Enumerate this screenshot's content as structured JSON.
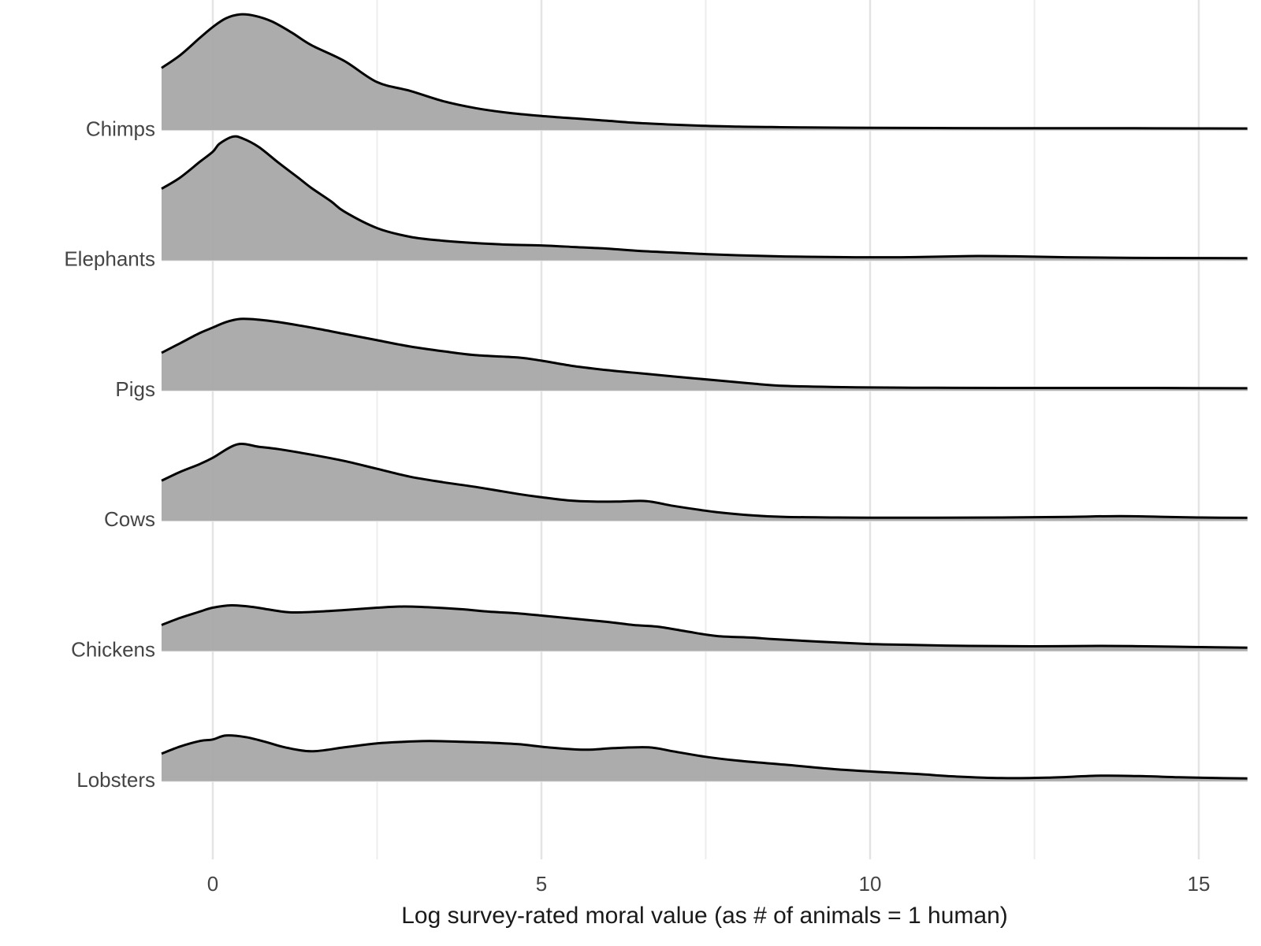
{
  "chart_data": {
    "type": "ridgeline",
    "title": "",
    "xlabel": "Log survey-rated moral value (as # of animals = 1 human)",
    "ylabel": "",
    "x_range": [
      -0.78,
      15.74
    ],
    "x_ticks": [
      {
        "value": 0,
        "label": "0"
      },
      {
        "value": 5,
        "label": "5"
      },
      {
        "value": 10,
        "label": "10"
      },
      {
        "value": 15,
        "label": "15"
      }
    ],
    "x_minor_gridlines": [
      2.5,
      7.5,
      12.5
    ],
    "grid": true,
    "legend": "none",
    "categories": [
      "Chimps",
      "Elephants",
      "Pigs",
      "Cows",
      "Chickens",
      "Lobsters"
    ],
    "colors": {
      "ridge_fill": "rgba(167,167,167,0.94)",
      "ridge_stroke": "#000000",
      "grid_major": "#e4e4e4",
      "grid_minor": "#ededed",
      "grid_baseline": "#e9e9e9",
      "axis_text": "#454545",
      "axis_title_text": "#1a1a1a",
      "background": "#ffffff"
    },
    "series": [
      {
        "name": "Chimps",
        "points": [
          [
            -0.78,
            79
          ],
          [
            -0.5,
            95
          ],
          [
            -0.2,
            117
          ],
          [
            0,
            131
          ],
          [
            0.2,
            142
          ],
          [
            0.42,
            147
          ],
          [
            0.65,
            145
          ],
          [
            0.9,
            138
          ],
          [
            1.2,
            124
          ],
          [
            1.5,
            108
          ],
          [
            2,
            88
          ],
          [
            2.5,
            61
          ],
          [
            3,
            50
          ],
          [
            3.5,
            37
          ],
          [
            4,
            28
          ],
          [
            4.5,
            22
          ],
          [
            5,
            18
          ],
          [
            5.5,
            15
          ],
          [
            6,
            12
          ],
          [
            6.5,
            9
          ],
          [
            7,
            7
          ],
          [
            7.5,
            5.5
          ],
          [
            8,
            4.5
          ],
          [
            8.5,
            4
          ],
          [
            9,
            3.5
          ],
          [
            10,
            3
          ],
          [
            11,
            2.8
          ],
          [
            12,
            2.6
          ],
          [
            13,
            2.5
          ],
          [
            14,
            2.5
          ],
          [
            15,
            2.3
          ],
          [
            15.74,
            2.2
          ]
        ]
      },
      {
        "name": "Elephants",
        "points": [
          [
            -0.78,
            91
          ],
          [
            -0.5,
            105
          ],
          [
            -0.2,
            125
          ],
          [
            0,
            138
          ],
          [
            0.1,
            148
          ],
          [
            0.3,
            157
          ],
          [
            0.45,
            155
          ],
          [
            0.7,
            144
          ],
          [
            1,
            124
          ],
          [
            1.3,
            105
          ],
          [
            1.5,
            92
          ],
          [
            1.8,
            75
          ],
          [
            2,
            62
          ],
          [
            2.5,
            41
          ],
          [
            3,
            30
          ],
          [
            3.5,
            25
          ],
          [
            4,
            22
          ],
          [
            4.5,
            20
          ],
          [
            5,
            19
          ],
          [
            5.5,
            17
          ],
          [
            6,
            15
          ],
          [
            6.5,
            12
          ],
          [
            7,
            10
          ],
          [
            7.5,
            8
          ],
          [
            8,
            6.5
          ],
          [
            8.7,
            5
          ],
          [
            9.5,
            4.2
          ],
          [
            10,
            4
          ],
          [
            10.7,
            4.2
          ],
          [
            11.5,
            5.5
          ],
          [
            12.2,
            5.2
          ],
          [
            13,
            4
          ],
          [
            14,
            3.2
          ],
          [
            15,
            3
          ],
          [
            15.74,
            2.8
          ]
        ]
      },
      {
        "name": "Pigs",
        "points": [
          [
            -0.78,
            48
          ],
          [
            -0.5,
            60
          ],
          [
            -0.2,
            73
          ],
          [
            0,
            80
          ],
          [
            0.2,
            87
          ],
          [
            0.42,
            91
          ],
          [
            0.7,
            90
          ],
          [
            1,
            87
          ],
          [
            1.5,
            80
          ],
          [
            2,
            72
          ],
          [
            2.5,
            64
          ],
          [
            3,
            56
          ],
          [
            3.5,
            50
          ],
          [
            4,
            45
          ],
          [
            4.65,
            42
          ],
          [
            5,
            38
          ],
          [
            5.5,
            31
          ],
          [
            6,
            26
          ],
          [
            6.5,
            22
          ],
          [
            7,
            18
          ],
          [
            7.67,
            13
          ],
          [
            8.2,
            9
          ],
          [
            8.7,
            6
          ],
          [
            9.5,
            4.5
          ],
          [
            10,
            4
          ],
          [
            11,
            3.6
          ],
          [
            12,
            3.4
          ],
          [
            13,
            3.4
          ],
          [
            14,
            3.4
          ],
          [
            15,
            3.2
          ],
          [
            15.74,
            3
          ]
        ]
      },
      {
        "name": "Cows",
        "points": [
          [
            -0.78,
            51
          ],
          [
            -0.5,
            62
          ],
          [
            -0.2,
            72
          ],
          [
            0,
            80
          ],
          [
            0.37,
            97
          ],
          [
            0.7,
            94
          ],
          [
            1,
            91
          ],
          [
            1.5,
            84
          ],
          [
            2,
            76
          ],
          [
            2.5,
            66
          ],
          [
            3,
            56
          ],
          [
            3.5,
            49
          ],
          [
            4,
            43
          ],
          [
            4.65,
            34
          ],
          [
            5,
            30
          ],
          [
            5.4,
            26
          ],
          [
            5.8,
            24.5
          ],
          [
            6.2,
            24.5
          ],
          [
            6.6,
            25
          ],
          [
            7,
            19
          ],
          [
            7.4,
            14
          ],
          [
            7.67,
            11
          ],
          [
            8.2,
            7
          ],
          [
            8.7,
            5
          ],
          [
            9.5,
            4.2
          ],
          [
            10,
            4
          ],
          [
            11,
            4
          ],
          [
            12,
            4.2
          ],
          [
            13,
            5
          ],
          [
            13.8,
            6
          ],
          [
            14.5,
            5
          ],
          [
            15,
            4.2
          ],
          [
            15.74,
            3.8
          ]
        ]
      },
      {
        "name": "Chickens",
        "points": [
          [
            -0.78,
            33
          ],
          [
            -0.5,
            42
          ],
          [
            -0.2,
            50
          ],
          [
            0,
            55
          ],
          [
            0.28,
            58
          ],
          [
            0.6,
            56
          ],
          [
            0.9,
            52
          ],
          [
            1.2,
            49
          ],
          [
            1.6,
            50
          ],
          [
            2,
            52
          ],
          [
            2.5,
            55
          ],
          [
            2.9,
            56.5
          ],
          [
            3.3,
            55.5
          ],
          [
            3.8,
            53
          ],
          [
            4.2,
            50
          ],
          [
            4.6,
            48
          ],
          [
            5,
            45
          ],
          [
            5.5,
            41
          ],
          [
            6,
            37
          ],
          [
            6.4,
            33
          ],
          [
            6.76,
            31
          ],
          [
            7.2,
            25
          ],
          [
            7.67,
            19
          ],
          [
            8.2,
            17
          ],
          [
            8.55,
            15
          ],
          [
            9.2,
            12
          ],
          [
            9.95,
            9
          ],
          [
            10.5,
            8
          ],
          [
            11.5,
            6.5
          ],
          [
            12.5,
            6
          ],
          [
            13.5,
            6.5
          ],
          [
            14.2,
            6
          ],
          [
            15,
            5
          ],
          [
            15.74,
            4.2
          ]
        ]
      },
      {
        "name": "Lobsters",
        "points": [
          [
            -0.78,
            35
          ],
          [
            -0.5,
            44
          ],
          [
            -0.2,
            51
          ],
          [
            0,
            53
          ],
          [
            0.2,
            58
          ],
          [
            0.5,
            56
          ],
          [
            0.8,
            50
          ],
          [
            1.1,
            43
          ],
          [
            1.5,
            38
          ],
          [
            2,
            43
          ],
          [
            2.5,
            48
          ],
          [
            2.9,
            50
          ],
          [
            3.3,
            51
          ],
          [
            3.8,
            50
          ],
          [
            4.2,
            49
          ],
          [
            4.65,
            47
          ],
          [
            5.1,
            43
          ],
          [
            5.66,
            40
          ],
          [
            6.1,
            42
          ],
          [
            6.63,
            43
          ],
          [
            7,
            38
          ],
          [
            7.5,
            31
          ],
          [
            8,
            26
          ],
          [
            8.7,
            21
          ],
          [
            9.5,
            15
          ],
          [
            10.3,
            11
          ],
          [
            10.75,
            9
          ],
          [
            11.3,
            6
          ],
          [
            12,
            4
          ],
          [
            12.7,
            4.5
          ],
          [
            13.5,
            7
          ],
          [
            14.1,
            6.5
          ],
          [
            14.7,
            5
          ],
          [
            15.3,
            4
          ],
          [
            15.74,
            3.5
          ]
        ]
      }
    ]
  }
}
